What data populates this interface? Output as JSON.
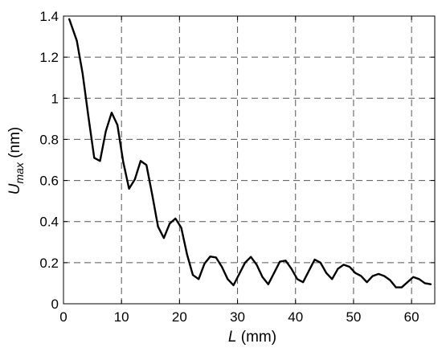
{
  "chart_data": {
    "type": "line",
    "xlabel": {
      "symbol": "L",
      "unit": " (mm)"
    },
    "ylabel": {
      "symbol": "U",
      "subscript": "max",
      "unit": " (nm)"
    },
    "xlim": [
      0,
      64
    ],
    "ylim": [
      0,
      1.4
    ],
    "xticks": [
      0,
      10,
      20,
      30,
      40,
      50,
      60
    ],
    "yticks": [
      0,
      0.2,
      0.4,
      0.6,
      0.8,
      1,
      1.2,
      1.4
    ],
    "ytick_labels": [
      "0",
      "0.2",
      "0.4",
      "0.6",
      "0.8",
      "1",
      "1.2",
      "1.4"
    ],
    "grid": true,
    "line_color": "#000000",
    "grid_color": "#555555",
    "series": [
      {
        "x": [
          1,
          2.3,
          3.3,
          4.3,
          5.3,
          6.3,
          7.3,
          8.3,
          9.3,
          10.3,
          11.3,
          12.3,
          13.3,
          14.3,
          15.3,
          16.3,
          17.3,
          18.3,
          19.3,
          20.3,
          21.3,
          22.3,
          23.3,
          24.3,
          25.3,
          26.3,
          27.3,
          28.3,
          29.3,
          30.3,
          31.3,
          32.3,
          33.3,
          34.3,
          35.3,
          36.3,
          37.3,
          38.3,
          39.3,
          40.3,
          41.3,
          42.3,
          43.3,
          44.3,
          45.3,
          46.3,
          47.3,
          48.3,
          49.3,
          50.3,
          51.3,
          52.3,
          53.3,
          54.3,
          55.3,
          56.3,
          57.3,
          58.3,
          59.3,
          60.3,
          61.3,
          62.3,
          63.3
        ],
        "y": [
          1.385,
          1.28,
          1.12,
          0.91,
          0.71,
          0.695,
          0.84,
          0.93,
          0.87,
          0.69,
          0.56,
          0.605,
          0.695,
          0.675,
          0.53,
          0.375,
          0.32,
          0.39,
          0.415,
          0.37,
          0.24,
          0.14,
          0.12,
          0.195,
          0.23,
          0.225,
          0.18,
          0.12,
          0.09,
          0.145,
          0.2,
          0.228,
          0.19,
          0.13,
          0.095,
          0.15,
          0.205,
          0.21,
          0.17,
          0.12,
          0.105,
          0.16,
          0.215,
          0.2,
          0.15,
          0.12,
          0.17,
          0.19,
          0.18,
          0.15,
          0.135,
          0.105,
          0.135,
          0.145,
          0.135,
          0.115,
          0.08,
          0.08,
          0.105,
          0.13,
          0.12,
          0.1,
          0.095
        ]
      }
    ]
  }
}
